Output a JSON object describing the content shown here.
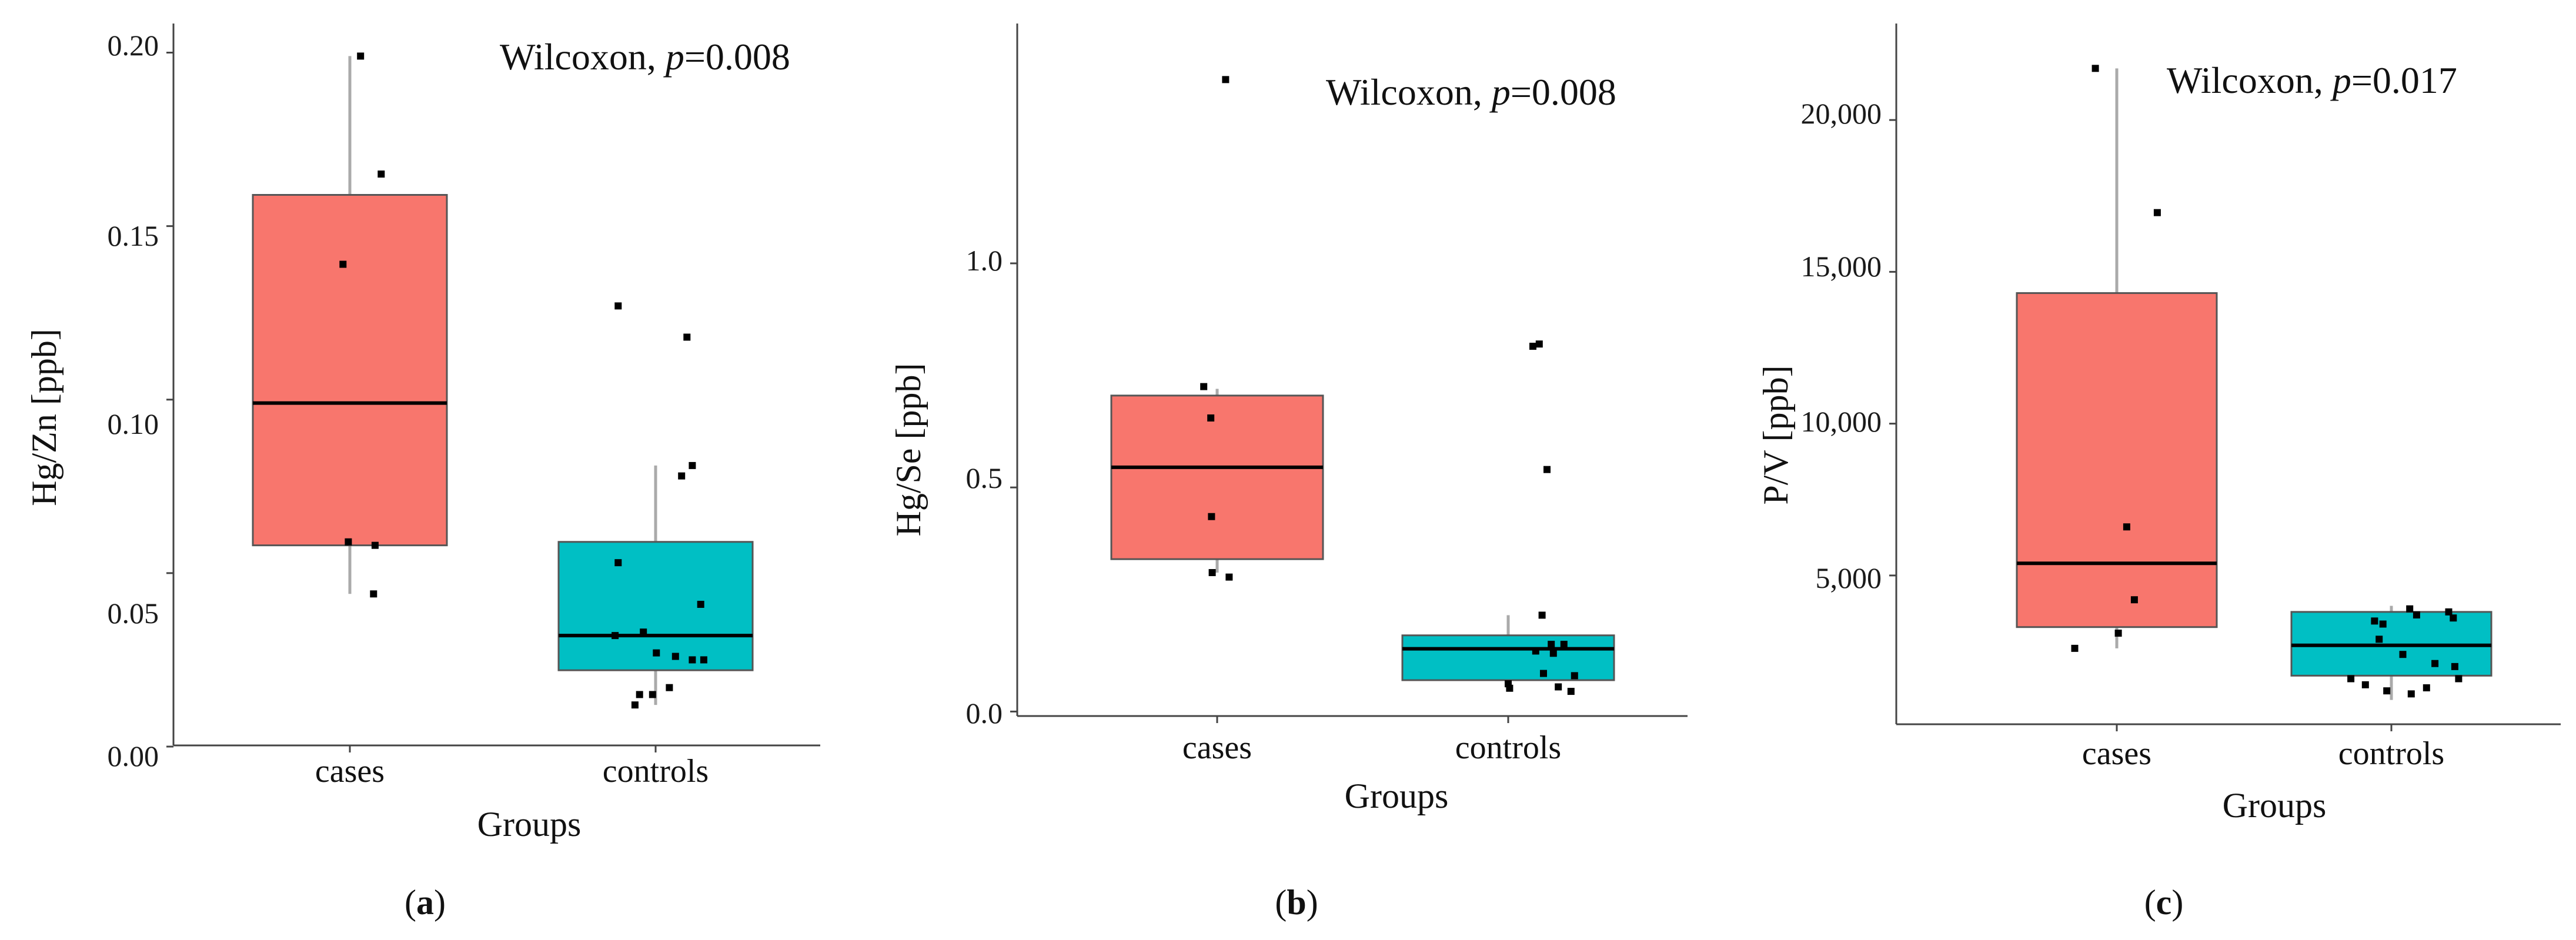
{
  "chart_data": [
    {
      "type": "boxplot",
      "ylabel": "Hg/Zn [ppb]",
      "xlabel": "Groups",
      "categories": [
        "cases",
        "controls"
      ],
      "ylim": [
        0.0,
        0.205
      ],
      "yticks": [
        0.0,
        0.05,
        0.1,
        0.15,
        0.2
      ],
      "ytick_labels": [
        "0.00",
        "0.05",
        "0.10",
        "0.15",
        "0.20"
      ],
      "annotation": {
        "prefix": "Wilcoxon, ",
        "p": "p",
        "value": "=0.008"
      },
      "caption": {
        "open": "(",
        "letter": "a",
        "close": ")"
      },
      "boxes": [
        {
          "group": "cases",
          "whisker_low": 0.044,
          "q1": 0.058,
          "median": 0.099,
          "q3": 0.159,
          "whisker_high": 0.199
        },
        {
          "group": "controls",
          "whisker_low": 0.012,
          "q1": 0.022,
          "median": 0.032,
          "q3": 0.059,
          "whisker_high": 0.081
        }
      ],
      "points": [
        {
          "group": 0,
          "jitter": 0.14,
          "y": 0.199
        },
        {
          "group": 0,
          "jitter": -0.09,
          "y": 0.139
        },
        {
          "group": 0,
          "jitter": 0.41,
          "y": 0.165
        },
        {
          "group": 0,
          "jitter": -0.02,
          "y": 0.059
        },
        {
          "group": 0,
          "jitter": 0.33,
          "y": 0.058
        },
        {
          "group": 0,
          "jitter": 0.31,
          "y": 0.044
        },
        {
          "group": 1,
          "jitter": -0.49,
          "y": 0.127
        },
        {
          "group": 1,
          "jitter": 0.41,
          "y": 0.118
        },
        {
          "group": 1,
          "jitter": 0.48,
          "y": 0.081
        },
        {
          "group": 1,
          "jitter": 0.34,
          "y": 0.078
        },
        {
          "group": 1,
          "jitter": -0.49,
          "y": 0.053
        },
        {
          "group": 1,
          "jitter": 0.59,
          "y": 0.041
        },
        {
          "group": 1,
          "jitter": -0.53,
          "y": 0.032
        },
        {
          "group": 1,
          "jitter": -0.16,
          "y": 0.033
        },
        {
          "group": 1,
          "jitter": 0.01,
          "y": 0.027
        },
        {
          "group": 1,
          "jitter": 0.26,
          "y": 0.026
        },
        {
          "group": 1,
          "jitter": 0.63,
          "y": 0.025
        },
        {
          "group": 1,
          "jitter": 0.48,
          "y": 0.025
        },
        {
          "group": 1,
          "jitter": 0.18,
          "y": 0.017
        },
        {
          "group": 1,
          "jitter": -0.04,
          "y": 0.015
        },
        {
          "group": 1,
          "jitter": -0.27,
          "y": 0.012
        },
        {
          "group": 1,
          "jitter": -0.21,
          "y": 0.015
        }
      ]
    },
    {
      "type": "boxplot",
      "ylabel": "Hg/Se [ppb]",
      "xlabel": "Groups",
      "categories": [
        "cases",
        "controls"
      ],
      "ylim": [
        -0.01,
        1.48
      ],
      "yticks": [
        0.0,
        0.5,
        1.0
      ],
      "ytick_labels": [
        "0.0",
        "0.5",
        "1.0"
      ],
      "annotation": {
        "prefix": "Wilcoxon, ",
        "p": "p",
        "value": "=0.008"
      },
      "caption": {
        "open": "(",
        "letter": "b",
        "close": ")"
      },
      "boxes": [
        {
          "group": "cases",
          "whisker_low": 0.31,
          "q1": 0.34,
          "median": 0.545,
          "q3": 0.705,
          "whisker_high": 0.72
        },
        {
          "group": "controls",
          "whisker_low": 0.045,
          "q1": 0.07,
          "median": 0.14,
          "q3": 0.17,
          "whisker_high": 0.215
        }
      ],
      "points": [
        {
          "group": 0,
          "jitter": 0.12,
          "y": 1.41
        },
        {
          "group": 0,
          "jitter": -0.19,
          "y": 0.725
        },
        {
          "group": 0,
          "jitter": -0.09,
          "y": 0.655
        },
        {
          "group": 0,
          "jitter": -0.08,
          "y": 0.435
        },
        {
          "group": 0,
          "jitter": -0.07,
          "y": 0.31
        },
        {
          "group": 0,
          "jitter": 0.17,
          "y": 0.3
        },
        {
          "group": 1,
          "jitter": 0.35,
          "y": 0.815
        },
        {
          "group": 1,
          "jitter": 0.44,
          "y": 0.82
        },
        {
          "group": 1,
          "jitter": 0.55,
          "y": 0.54
        },
        {
          "group": 1,
          "jitter": 0.48,
          "y": 0.215
        },
        {
          "group": 1,
          "jitter": 0.61,
          "y": 0.15
        },
        {
          "group": 1,
          "jitter": 0.79,
          "y": 0.15
        },
        {
          "group": 1,
          "jitter": 0.39,
          "y": 0.135
        },
        {
          "group": 1,
          "jitter": 0.64,
          "y": 0.13
        },
        {
          "group": 1,
          "jitter": 0.5,
          "y": 0.085
        },
        {
          "group": 1,
          "jitter": 0.94,
          "y": 0.08
        },
        {
          "group": 1,
          "jitter": 0.0,
          "y": 0.062
        },
        {
          "group": 1,
          "jitter": 0.02,
          "y": 0.052
        },
        {
          "group": 1,
          "jitter": 0.71,
          "y": 0.055
        },
        {
          "group": 1,
          "jitter": 0.89,
          "y": 0.045
        }
      ]
    },
    {
      "type": "boxplot",
      "ylabel": "P/V [ppb]",
      "xlabel": "Groups",
      "categories": [
        "cases",
        "controls"
      ],
      "ylim": [
        100,
        22500
      ],
      "yticks": [
        5000,
        10000,
        15000,
        20000
      ],
      "ytick_labels": [
        "5,000",
        "10,000",
        "15,000",
        "20,000"
      ],
      "annotation": {
        "prefix": "Wilcoxon, ",
        "p": "p",
        "value": "=0.017"
      },
      "caption": {
        "open": "(",
        "letter": "c",
        "close": ")"
      },
      "boxes": [
        {
          "group": "cases",
          "whisker_low": 2600,
          "q1": 3300,
          "median": 5400,
          "q3": 14300,
          "whisker_high": 21700
        },
        {
          "group": "controls",
          "whisker_low": 900,
          "q1": 1700,
          "median": 2700,
          "q3": 3800,
          "whisker_high": 4000
        }
      ],
      "points": [
        {
          "group": 0,
          "jitter": -0.28,
          "y": 21700
        },
        {
          "group": 0,
          "jitter": 0.53,
          "y": 16950
        },
        {
          "group": 0,
          "jitter": 0.13,
          "y": 6600
        },
        {
          "group": 0,
          "jitter": 0.23,
          "y": 4200
        },
        {
          "group": 0,
          "jitter": 0.02,
          "y": 3100
        },
        {
          "group": 0,
          "jitter": -0.55,
          "y": 2600
        },
        {
          "group": 1,
          "jitter": -0.22,
          "y": 3500
        },
        {
          "group": 1,
          "jitter": -0.11,
          "y": 3400
        },
        {
          "group": 1,
          "jitter": 0.24,
          "y": 3900
        },
        {
          "group": 1,
          "jitter": 0.33,
          "y": 3700
        },
        {
          "group": 1,
          "jitter": 0.75,
          "y": 3800
        },
        {
          "group": 1,
          "jitter": 0.81,
          "y": 3600
        },
        {
          "group": 1,
          "jitter": -0.16,
          "y": 2900
        },
        {
          "group": 1,
          "jitter": 0.15,
          "y": 2400
        },
        {
          "group": 1,
          "jitter": 0.57,
          "y": 2100
        },
        {
          "group": 1,
          "jitter": 0.83,
          "y": 2000
        },
        {
          "group": 1,
          "jitter": -0.53,
          "y": 1600
        },
        {
          "group": 1,
          "jitter": -0.34,
          "y": 1400
        },
        {
          "group": 1,
          "jitter": -0.06,
          "y": 1200
        },
        {
          "group": 1,
          "jitter": 0.26,
          "y": 1100
        },
        {
          "group": 1,
          "jitter": 0.46,
          "y": 1300
        },
        {
          "group": 1,
          "jitter": 0.88,
          "y": 1600
        }
      ]
    }
  ],
  "colors": {
    "cases_fill": "#f8766d",
    "controls_fill": "#00bfc4",
    "box_stroke": "#555555",
    "whisker": "#aaaaaa",
    "median": "#000000",
    "point": "#000000",
    "axis": "#444444"
  }
}
